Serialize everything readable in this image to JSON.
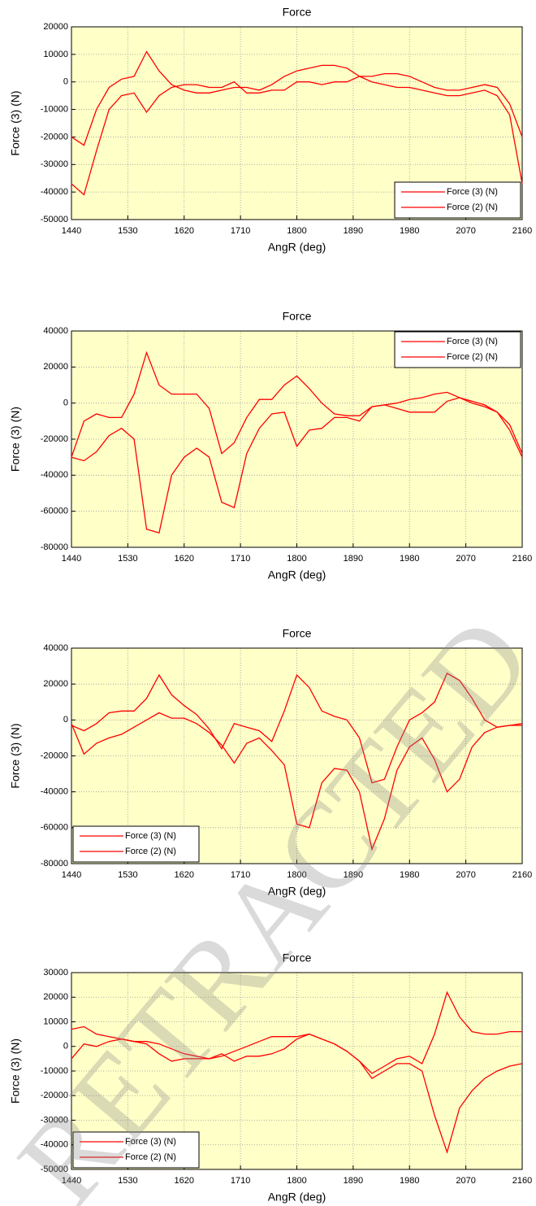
{
  "watermark": "RETRACTED",
  "chart_data": [
    {
      "type": "line",
      "title": "Force",
      "x_label": "AngR (deg)",
      "y_label": "Force (3) (N)",
      "legend": "lower right",
      "grid": true,
      "x": [
        1440,
        1460,
        1480,
        1500,
        1520,
        1540,
        1560,
        1580,
        1600,
        1620,
        1640,
        1660,
        1680,
        1700,
        1720,
        1740,
        1760,
        1780,
        1800,
        1820,
        1840,
        1860,
        1880,
        1900,
        1920,
        1940,
        1960,
        1980,
        2000,
        2020,
        2040,
        2060,
        2080,
        2100,
        2120,
        2140,
        2160
      ],
      "xlim": [
        1440,
        2160
      ],
      "xticks": [
        1440,
        1530,
        1620,
        1710,
        1800,
        1890,
        1980,
        2070,
        2160
      ],
      "ylim": [
        -50000,
        20000
      ],
      "yticks": [
        -50000,
        -40000,
        -30000,
        -20000,
        -10000,
        0,
        10000,
        20000
      ],
      "series": [
        {
          "name": "Force (3) (N)",
          "color": "#ff0000",
          "values": [
            -20000,
            -23000,
            -10000,
            -2000,
            1000,
            2000,
            11000,
            4000,
            -1000,
            -3000,
            -4000,
            -4000,
            -3000,
            -2000,
            -2000,
            -3000,
            -1000,
            2000,
            4000,
            5000,
            6000,
            6000,
            5000,
            2000,
            0,
            -1000,
            -2000,
            -2000,
            -3000,
            -4000,
            -5000,
            -5000,
            -4000,
            -3000,
            -5000,
            -12000,
            -37000
          ]
        },
        {
          "name": "Force (2) (N)",
          "color": "#ff0000",
          "values": [
            -37000,
            -41000,
            -25000,
            -10000,
            -5000,
            -4000,
            -11000,
            -5000,
            -2000,
            -1000,
            -1000,
            -2000,
            -2000,
            0,
            -4000,
            -4000,
            -3000,
            -3000,
            0,
            0,
            -1000,
            0,
            0,
            2000,
            2000,
            3000,
            3000,
            2000,
            0,
            -2000,
            -3000,
            -3000,
            -2000,
            -1000,
            -2000,
            -8000,
            -20000
          ]
        }
      ]
    },
    {
      "type": "line",
      "title": "Force",
      "x_label": "AngR (deg)",
      "y_label": "Force (3) (N)",
      "legend": "upper right",
      "grid": true,
      "x": [
        1440,
        1460,
        1480,
        1500,
        1520,
        1540,
        1560,
        1580,
        1600,
        1620,
        1640,
        1660,
        1680,
        1700,
        1720,
        1740,
        1760,
        1780,
        1800,
        1820,
        1840,
        1860,
        1880,
        1900,
        1920,
        1940,
        1960,
        1980,
        2000,
        2020,
        2040,
        2060,
        2080,
        2100,
        2120,
        2140,
        2160
      ],
      "xlim": [
        1440,
        2160
      ],
      "xticks": [
        1440,
        1530,
        1620,
        1710,
        1800,
        1890,
        1980,
        2070,
        2160
      ],
      "ylim": [
        -80000,
        40000
      ],
      "yticks": [
        -80000,
        -60000,
        -40000,
        -20000,
        0,
        20000,
        40000
      ],
      "series": [
        {
          "name": "Force (3) (N)",
          "color": "#ff0000",
          "values": [
            -30000,
            -10000,
            -6000,
            -8000,
            -8000,
            5000,
            28000,
            10000,
            5000,
            5000,
            5000,
            -3000,
            -28000,
            -22000,
            -8000,
            2000,
            2000,
            10000,
            15000,
            8000,
            0,
            -6000,
            -7000,
            -7000,
            -2000,
            -1000,
            0,
            2000,
            3000,
            5000,
            6000,
            3000,
            0,
            -2000,
            -5000,
            -12000,
            -28000
          ]
        },
        {
          "name": "Force (2) (N)",
          "color": "#ff0000",
          "values": [
            -30000,
            -32000,
            -27000,
            -18000,
            -14000,
            -20000,
            -70000,
            -72000,
            -40000,
            -30000,
            -25000,
            -30000,
            -55000,
            -58000,
            -28000,
            -14000,
            -6000,
            -5000,
            -24000,
            -15000,
            -14000,
            -8000,
            -8000,
            -10000,
            -2000,
            -1000,
            -3000,
            -5000,
            -5000,
            -5000,
            1000,
            3000,
            1000,
            -1000,
            -5000,
            -15000,
            -30000
          ]
        }
      ]
    },
    {
      "type": "line",
      "title": "Force",
      "x_label": "AngR (deg)",
      "y_label": "Force (3) (N)",
      "legend": "lower left",
      "grid": true,
      "x": [
        1440,
        1460,
        1480,
        1500,
        1520,
        1540,
        1560,
        1580,
        1600,
        1620,
        1640,
        1660,
        1680,
        1700,
        1720,
        1740,
        1760,
        1780,
        1800,
        1820,
        1840,
        1860,
        1880,
        1900,
        1920,
        1940,
        1960,
        1980,
        2000,
        2020,
        2040,
        2060,
        2080,
        2100,
        2120,
        2140,
        2160
      ],
      "xlim": [
        1440,
        2160
      ],
      "xticks": [
        1440,
        1530,
        1620,
        1710,
        1800,
        1890,
        1980,
        2070,
        2160
      ],
      "ylim": [
        -80000,
        40000
      ],
      "yticks": [
        -80000,
        -60000,
        -40000,
        -20000,
        0,
        20000,
        40000
      ],
      "series": [
        {
          "name": "Force (3) (N)",
          "color": "#ff0000",
          "values": [
            -3000,
            -6000,
            -2000,
            4000,
            5000,
            5000,
            12000,
            25000,
            14000,
            8000,
            3000,
            -5000,
            -16000,
            -2000,
            -4000,
            -6000,
            -12000,
            5000,
            25000,
            18000,
            5000,
            2000,
            0,
            -10000,
            -35000,
            -33000,
            -15000,
            0,
            4000,
            10000,
            26000,
            22000,
            12000,
            0,
            -4000,
            -3000,
            -2000
          ]
        },
        {
          "name": "Force (2) (N)",
          "color": "#ff0000",
          "values": [
            -2000,
            -19000,
            -13000,
            -10000,
            -8000,
            -4000,
            0,
            4000,
            1000,
            1000,
            -2000,
            -7000,
            -14000,
            -24000,
            -13000,
            -10000,
            -17000,
            -25000,
            -58000,
            -60000,
            -35000,
            -27000,
            -28000,
            -40000,
            -72000,
            -55000,
            -28000,
            -15000,
            -10000,
            -22000,
            -40000,
            -33000,
            -15000,
            -7000,
            -4000,
            -3000,
            -3000
          ]
        }
      ]
    },
    {
      "type": "line",
      "title": "Force",
      "x_label": "AngR (deg)",
      "y_label": "Force (3) (N)",
      "legend": "lower left",
      "grid": true,
      "x": [
        1440,
        1460,
        1480,
        1500,
        1520,
        1540,
        1560,
        1580,
        1600,
        1620,
        1640,
        1660,
        1680,
        1700,
        1720,
        1740,
        1760,
        1780,
        1800,
        1820,
        1840,
        1860,
        1880,
        1900,
        1920,
        1940,
        1960,
        1980,
        2000,
        2020,
        2040,
        2060,
        2080,
        2100,
        2120,
        2140,
        2160
      ],
      "xlim": [
        1440,
        2160
      ],
      "xticks": [
        1440,
        1530,
        1620,
        1710,
        1800,
        1890,
        1980,
        2070,
        2160
      ],
      "ylim": [
        -50000,
        30000
      ],
      "yticks": [
        -50000,
        -40000,
        -30000,
        -20000,
        -10000,
        0,
        10000,
        20000,
        30000
      ],
      "series": [
        {
          "name": "Force (3) (N)",
          "color": "#ff0000",
          "values": [
            7000,
            8000,
            5000,
            4000,
            3000,
            2000,
            2000,
            1000,
            -1000,
            -3000,
            -4000,
            -5000,
            -4000,
            -2000,
            0,
            2000,
            4000,
            4000,
            4000,
            5000,
            3000,
            1000,
            -2000,
            -6000,
            -11000,
            -8000,
            -5000,
            -4000,
            -7000,
            5000,
            22000,
            12000,
            6000,
            5000,
            5000,
            6000,
            6000
          ]
        },
        {
          "name": "Force (2) (N)",
          "color": "#ff0000",
          "values": [
            -5000,
            1000,
            0,
            2000,
            3000,
            2000,
            1000,
            -3000,
            -6000,
            -5000,
            -5000,
            -5000,
            -3000,
            -6000,
            -4000,
            -4000,
            -3000,
            -1000,
            3000,
            5000,
            3000,
            1000,
            -2000,
            -6000,
            -13000,
            -10000,
            -7000,
            -7000,
            -10000,
            -28000,
            -43000,
            -25000,
            -18000,
            -13000,
            -10000,
            -8000,
            -7000
          ]
        }
      ]
    }
  ]
}
